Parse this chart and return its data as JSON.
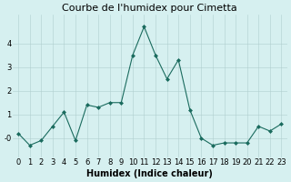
{
  "title": "Courbe de l'humidex pour Cimetta",
  "xlabel": "Humidex (Indice chaleur)",
  "x": [
    0,
    1,
    2,
    3,
    4,
    5,
    6,
    7,
    8,
    9,
    10,
    11,
    12,
    13,
    14,
    15,
    16,
    17,
    18,
    19,
    20,
    21,
    22,
    23
  ],
  "y": [
    0.2,
    -0.3,
    -0.1,
    0.5,
    1.1,
    -0.1,
    1.4,
    1.3,
    1.5,
    1.5,
    3.5,
    4.7,
    3.5,
    2.5,
    3.3,
    1.2,
    0.0,
    -0.3,
    -0.2,
    -0.2,
    -0.2,
    0.5,
    0.3,
    0.6
  ],
  "line_color": "#1a6b5e",
  "marker_color": "#1a6b5e",
  "bg_color": "#d6f0f0",
  "grid_color": "#b0cece",
  "ylim": [
    -0.8,
    5.2
  ],
  "xlim": [
    -0.5,
    23.5
  ],
  "yticks": [
    0,
    1,
    2,
    3,
    4
  ],
  "ytick_labels": [
    "-0",
    "1",
    "2",
    "3",
    "4"
  ],
  "xticks": [
    0,
    1,
    2,
    3,
    4,
    5,
    6,
    7,
    8,
    9,
    10,
    11,
    12,
    13,
    14,
    15,
    16,
    17,
    18,
    19,
    20,
    21,
    22,
    23
  ],
  "title_fontsize": 8,
  "label_fontsize": 7,
  "tick_fontsize": 6
}
